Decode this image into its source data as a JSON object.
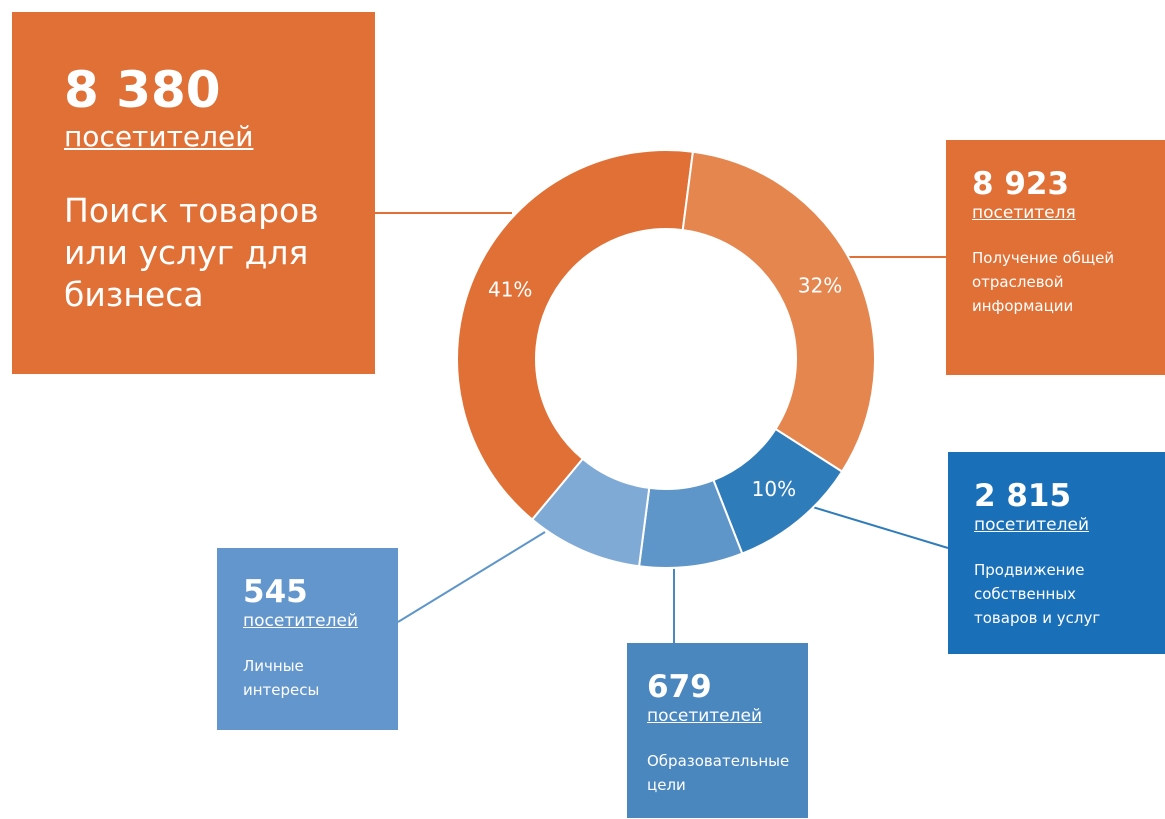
{
  "chart_data": {
    "type": "donut",
    "categories": [
      "Поиск товаров или услуг для бизнеса",
      "Получение общей отраслевой информации",
      "Продвижение собственных товаров и услуг",
      "Образовательные цели",
      "Личные интересы"
    ],
    "values": [
      41,
      32,
      10,
      8,
      9
    ],
    "value_labels": [
      "41%",
      "32%",
      "10%",
      null,
      null
    ],
    "colors": [
      "#e07035",
      "#e5864f",
      "#2f7cba",
      "#5f96ca",
      "#80aad6"
    ],
    "counts": [
      "8 380",
      "8 923",
      "2 815",
      "679",
      "545"
    ],
    "units": [
      "посетителей",
      "посетителя",
      "посетителей",
      "посетителей",
      "посетителей"
    ]
  }
}
